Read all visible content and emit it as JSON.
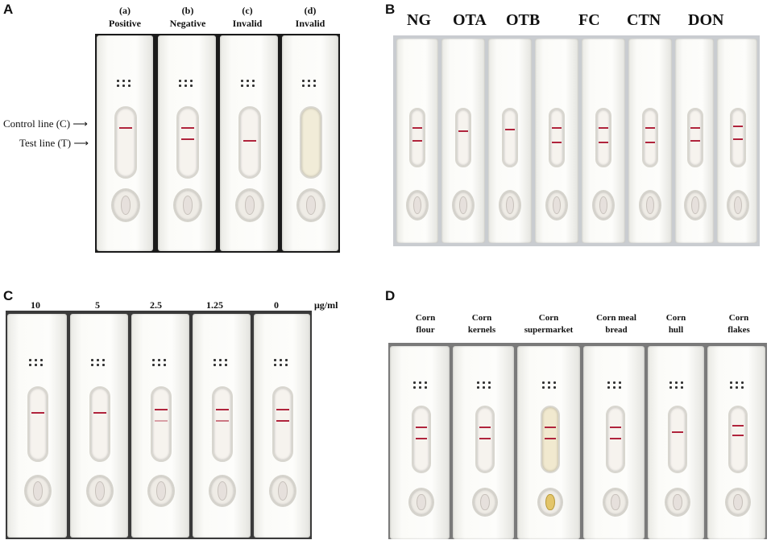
{
  "panels": {
    "A": {
      "letter": "A",
      "strips": [
        {
          "tag": "(a)",
          "label": "Positive"
        },
        {
          "tag": "(b)",
          "label": "Negative"
        },
        {
          "tag": "(c)",
          "label": "Invalid"
        },
        {
          "tag": "(d)",
          "label": "Invalid"
        }
      ],
      "control_line_label": "Control line (C)",
      "test_line_label": "Test line (T)"
    },
    "B": {
      "letter": "B",
      "strips": [
        "NG",
        "OTA",
        "OTB",
        "FC",
        "CTN",
        "DON"
      ]
    },
    "C": {
      "letter": "C",
      "concentrations": [
        "10",
        "5",
        "2.5",
        "1.25",
        "0"
      ],
      "unit": "μg/ml"
    },
    "D": {
      "letter": "D",
      "samples": [
        {
          "line1": "Corn",
          "line2": "flour"
        },
        {
          "line1": "Corn",
          "line2": "kernels"
        },
        {
          "line1": "Corn",
          "line2": "supermarket"
        },
        {
          "line1": "Corn meal",
          "line2": "bread"
        },
        {
          "line1": "Corn",
          "line2": "hull"
        },
        {
          "line1": "Corn",
          "line2": "flakes"
        }
      ]
    }
  },
  "colors": {
    "test_line": "#b0243c",
    "strip": "#fbfbf8"
  }
}
